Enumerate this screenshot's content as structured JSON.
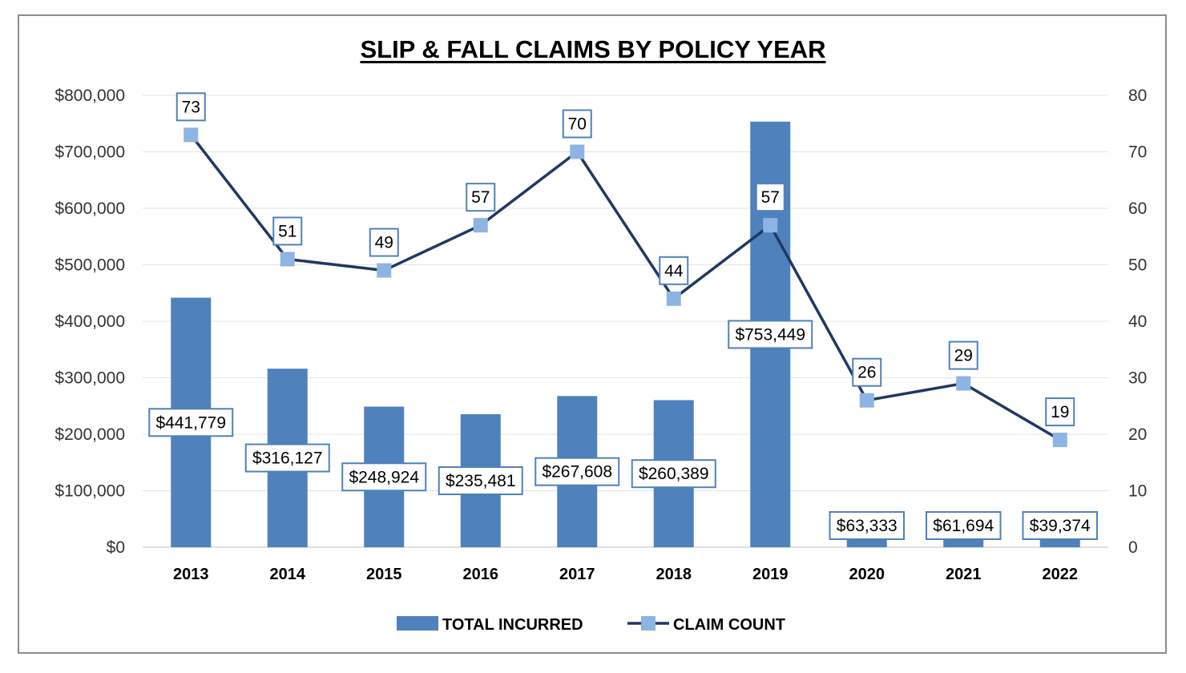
{
  "chart_data": {
    "type": "bar",
    "title": "SLIP & FALL CLAIMS BY POLICY YEAR",
    "categories": [
      "2013",
      "2014",
      "2015",
      "2016",
      "2017",
      "2018",
      "2019",
      "2020",
      "2021",
      "2022"
    ],
    "series": [
      {
        "name": "TOTAL INCURRED",
        "type": "bar",
        "axis": "left",
        "color": "#4f81bd",
        "values": [
          441779,
          316127,
          248924,
          235481,
          267608,
          260389,
          753449,
          63333,
          61694,
          39374
        ],
        "labels": [
          "$441,779",
          "$316,127",
          "$248,924",
          "$235,481",
          "$267,608",
          "$260,389",
          "$753,449",
          "$63,333",
          "$61,694",
          "$39,374"
        ]
      },
      {
        "name": "CLAIM COUNT",
        "type": "line",
        "axis": "right",
        "color": "#1f3864",
        "marker_color": "#8db4e2",
        "values": [
          73,
          51,
          49,
          57,
          70,
          44,
          57,
          26,
          29,
          19
        ],
        "labels": [
          "73",
          "51",
          "49",
          "57",
          "70",
          "44",
          "57",
          "26",
          "29",
          "19"
        ]
      }
    ],
    "y_left": {
      "ylim": [
        0,
        800000
      ],
      "ticks": [
        0,
        100000,
        200000,
        300000,
        400000,
        500000,
        600000,
        700000,
        800000
      ],
      "tick_labels": [
        "$0",
        "$100,000",
        "$200,000",
        "$300,000",
        "$400,000",
        "$500,000",
        "$600,000",
        "$700,000",
        "$800,000"
      ]
    },
    "y_right": {
      "ylim": [
        0,
        80
      ],
      "ticks": [
        0,
        10,
        20,
        30,
        40,
        50,
        60,
        70,
        80
      ],
      "tick_labels": [
        "0",
        "10",
        "20",
        "30",
        "40",
        "50",
        "60",
        "70",
        "80"
      ]
    },
    "xlabel": "",
    "ylabel": "",
    "grid": true,
    "legend": "bottom-center"
  }
}
